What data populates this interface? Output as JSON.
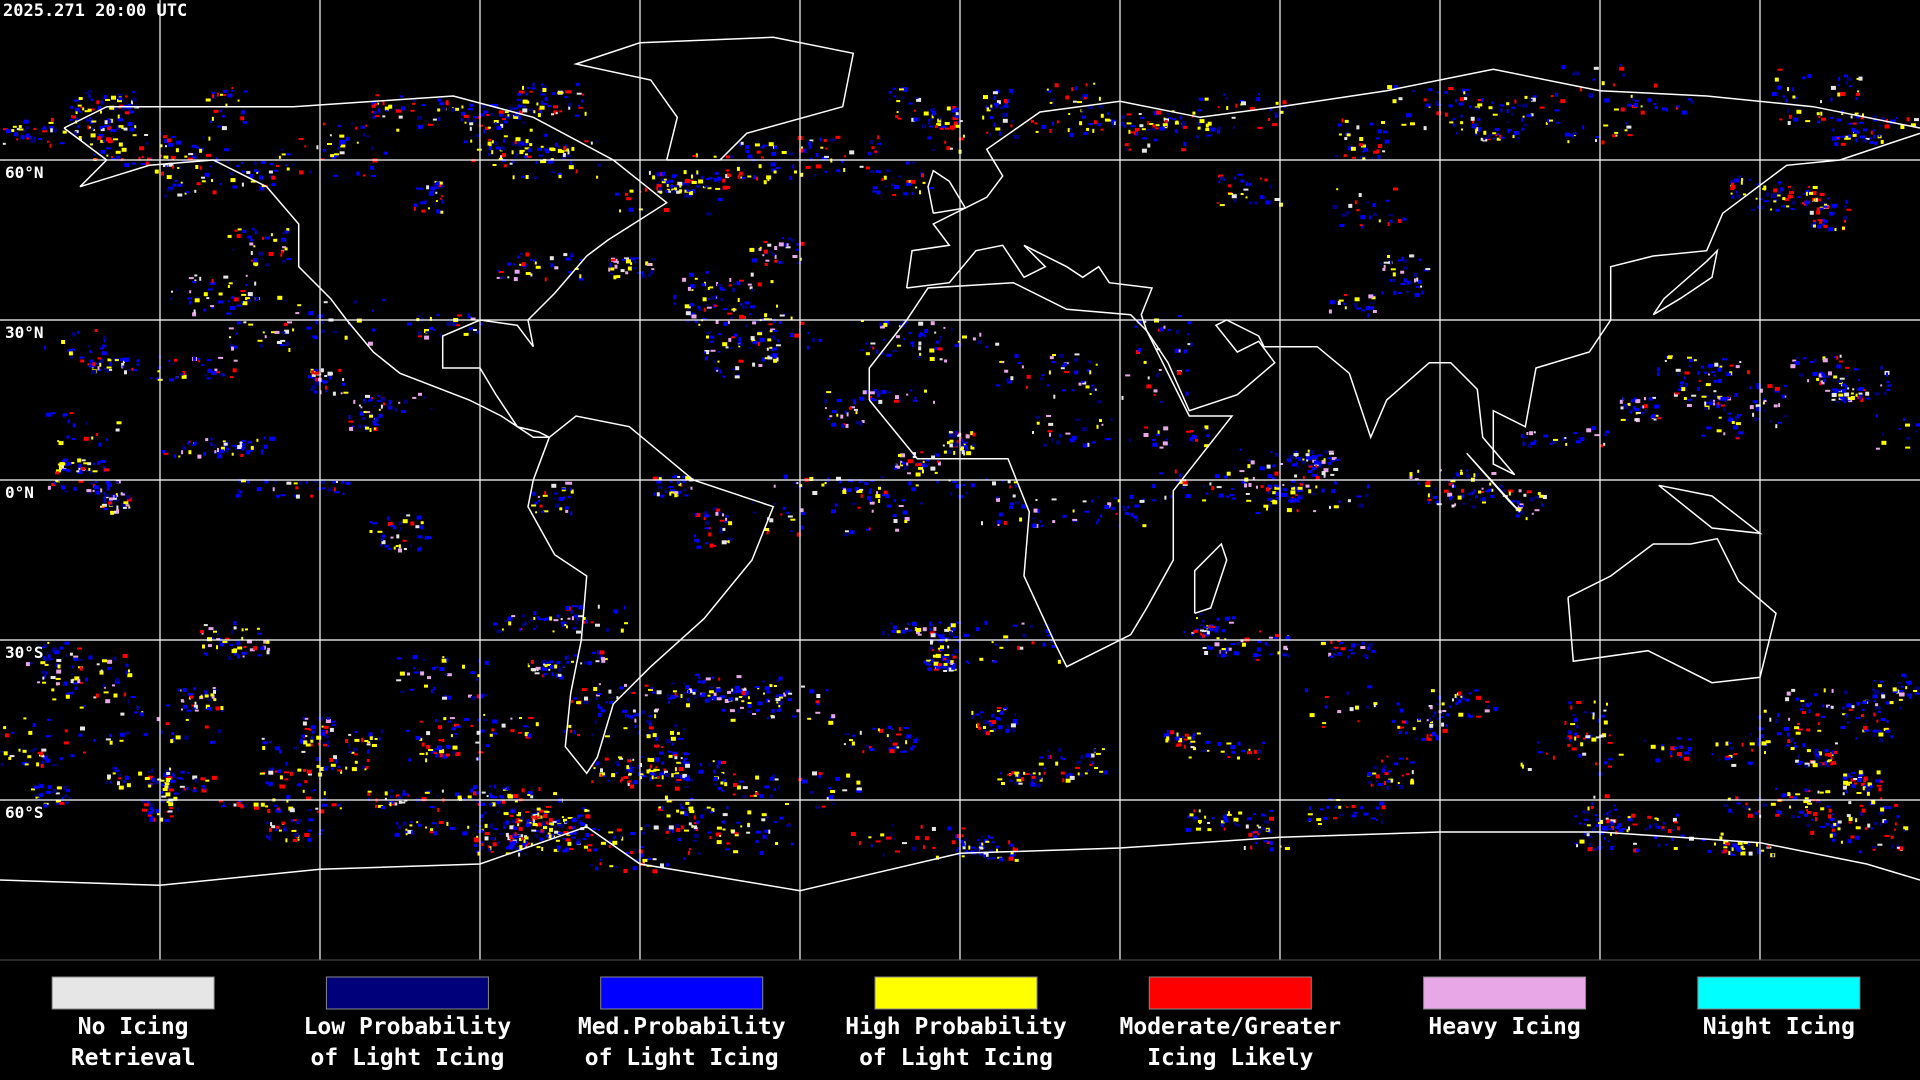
{
  "header": {
    "timestamp": "2025.271 20:00 UTC"
  },
  "map": {
    "lat_labels": [
      "60°N",
      "30°N",
      "0°N",
      "30°S",
      "60°S"
    ]
  },
  "legend": {
    "items": [
      {
        "lines": [
          "No Icing",
          "Retrieval"
        ],
        "color": "#e6e6e6"
      },
      {
        "lines": [
          "Low Probability",
          "of Light Icing"
        ],
        "color": "#00007a"
      },
      {
        "lines": [
          "Med.Probability",
          "of Light Icing"
        ],
        "color": "#0000ff"
      },
      {
        "lines": [
          "High Probability",
          "of Light Icing"
        ],
        "color": "#ffff00"
      },
      {
        "lines": [
          "Moderate/Greater",
          "Icing Likely"
        ],
        "color": "#ff0000"
      },
      {
        "lines": [
          "Heavy Icing"
        ],
        "color": "#e8a8e8"
      },
      {
        "lines": [
          "Night Icing"
        ],
        "color": "#00ffff"
      }
    ]
  }
}
